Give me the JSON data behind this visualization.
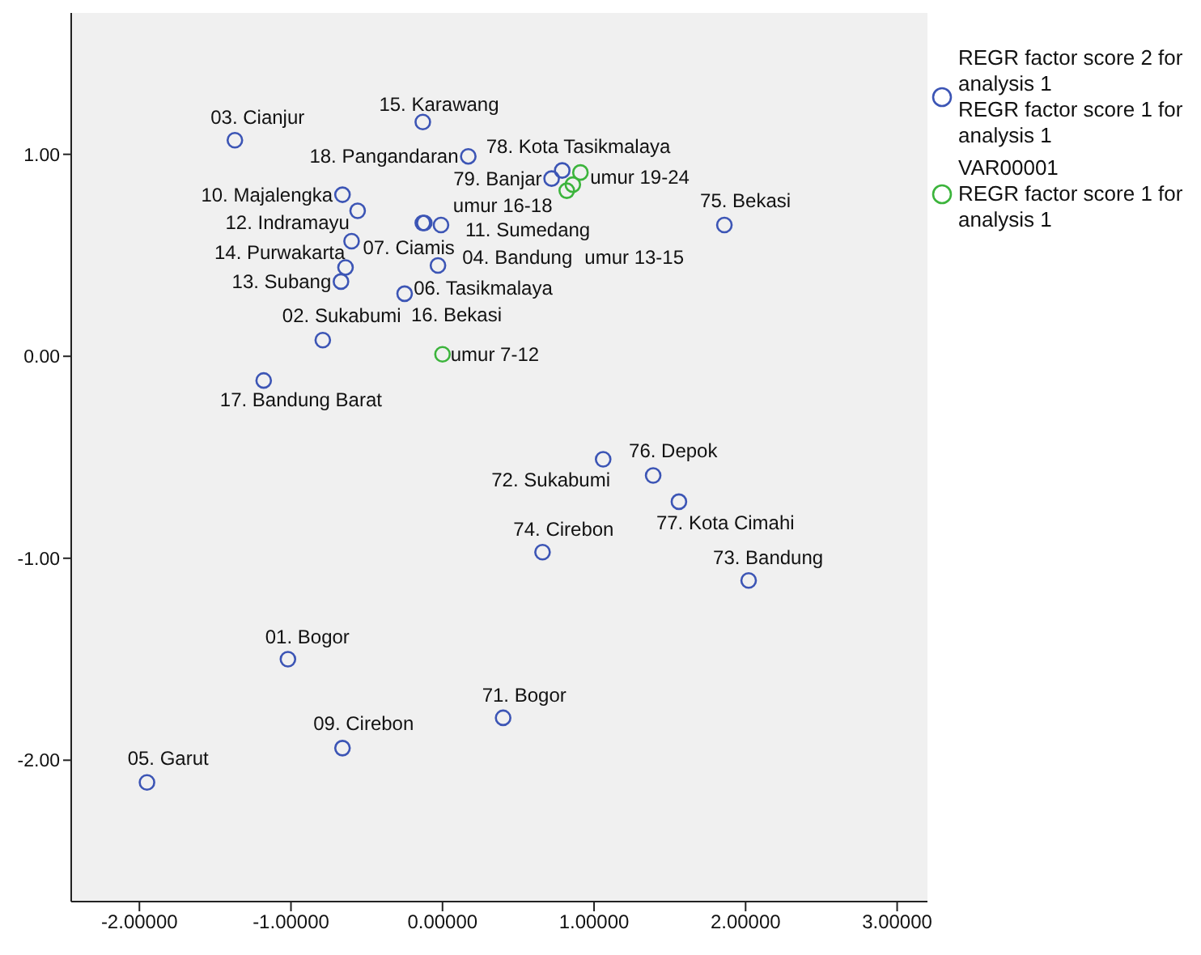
{
  "chart_data": {
    "type": "scatter",
    "marker": "circle",
    "legend": "top right",
    "grid": false,
    "xlim": [
      -2.45,
      3.2
    ],
    "ylim": [
      -2.7,
      1.7
    ],
    "xticks": [
      {
        "value": -2,
        "label": "-2.00000"
      },
      {
        "value": -1,
        "label": "-1.00000"
      },
      {
        "value": 0,
        "label": "0.00000"
      },
      {
        "value": 1,
        "label": "1.00000"
      },
      {
        "value": 2,
        "label": "2.00000"
      },
      {
        "value": 3,
        "label": "3.00000"
      }
    ],
    "yticks": [
      {
        "value": -2,
        "label": "-2.00"
      },
      {
        "value": -1,
        "label": "-1.00"
      },
      {
        "value": 0,
        "label": "0.00"
      },
      {
        "value": 1,
        "label": "1.00"
      }
    ],
    "series": [
      {
        "name": "REGR factor score   2 for analysis 1\n REGR factor score   1 for analysis 1",
        "color": "#3c55b5",
        "x": [
          -1.37,
          -0.13,
          0.17,
          0.79,
          0.72,
          -0.66,
          -0.56,
          -0.13,
          -0.12,
          -0.01,
          -0.6,
          -0.64,
          -0.67,
          -0.03,
          -0.25,
          -0.79,
          -1.18,
          1.86,
          1.39,
          1.06,
          1.56,
          0.66,
          2.02,
          -1.02,
          0.4,
          -0.66,
          -1.95
        ],
        "values": [
          1.07,
          1.16,
          0.99,
          0.92,
          0.88,
          0.8,
          0.72,
          0.66,
          0.66,
          0.65,
          0.57,
          0.44,
          0.37,
          0.45,
          0.31,
          0.08,
          -0.12,
          0.65,
          -0.59,
          -0.51,
          -0.72,
          -0.97,
          -1.11,
          -1.5,
          -1.79,
          -1.94,
          -2.11
        ]
      },
      {
        "name": "VAR00001\n REGR factor score   1 for analysis 1",
        "color": "#3cb43c",
        "x": [
          0.91,
          0.86,
          0.82,
          0.0
        ],
        "values": [
          0.91,
          0.85,
          0.82,
          0.01
        ]
      }
    ],
    "annotations": [
      {
        "text": "03. Cianjur",
        "x": -1.37,
        "y": 1.07
      },
      {
        "text": "15. Karawang",
        "x": -0.13,
        "y": 1.16
      },
      {
        "text": "18. Pangandaran",
        "x": 0.17,
        "y": 0.99
      },
      {
        "text": "78. Kota Tasikmalaya",
        "x": 0.79,
        "y": 0.92
      },
      {
        "text": "79. Banjar",
        "x": 0.72,
        "y": 0.88
      },
      {
        "text": "umur 19-24",
        "x": 0.91,
        "y": 0.91
      },
      {
        "text": "umur 16-18",
        "x": 0.86,
        "y": 0.85
      },
      {
        "text": "10. Majalengka",
        "x": -0.66,
        "y": 0.8
      },
      {
        "text": "12. Indramayu",
        "x": -0.56,
        "y": 0.72
      },
      {
        "text": "11. Sumedang",
        "x": -0.01,
        "y": 0.65
      },
      {
        "text": "14. Purwakarta",
        "x": -0.6,
        "y": 0.57
      },
      {
        "text": "07. Ciamis",
        "x": -0.13,
        "y": 0.66
      },
      {
        "text": "04. Bandung",
        "x": -0.03,
        "y": 0.45
      },
      {
        "text": "umur 13-15",
        "x": 0.82,
        "y": 0.82
      },
      {
        "text": "13. Subang",
        "x": -0.67,
        "y": 0.37
      },
      {
        "text": "06. Tasikmalaya",
        "x": -0.03,
        "y": 0.45
      },
      {
        "text": "02. Sukabumi",
        "x": -0.79,
        "y": 0.08
      },
      {
        "text": "16. Bekasi",
        "x": -0.25,
        "y": 0.31
      },
      {
        "text": "umur 7-12",
        "x": 0.0,
        "y": 0.01
      },
      {
        "text": "17. Bandung Barat",
        "x": -1.18,
        "y": -0.12
      },
      {
        "text": "75. Bekasi",
        "x": 1.86,
        "y": 0.65
      },
      {
        "text": "76. Depok",
        "x": 1.39,
        "y": -0.59
      },
      {
        "text": "72. Sukabumi",
        "x": 1.06,
        "y": -0.51
      },
      {
        "text": "74. Cirebon",
        "x": 0.66,
        "y": -0.97
      },
      {
        "text": "77. Kota Cimahi",
        "x": 1.56,
        "y": -0.72
      },
      {
        "text": "73. Bandung",
        "x": 2.02,
        "y": -1.11
      },
      {
        "text": "01. Bogor",
        "x": -1.02,
        "y": -1.5
      },
      {
        "text": "71. Bogor",
        "x": 0.4,
        "y": -1.79
      },
      {
        "text": "09. Cirebon",
        "x": -0.66,
        "y": -1.94
      },
      {
        "text": "05. Garut",
        "x": -1.95,
        "y": -2.11
      }
    ]
  }
}
